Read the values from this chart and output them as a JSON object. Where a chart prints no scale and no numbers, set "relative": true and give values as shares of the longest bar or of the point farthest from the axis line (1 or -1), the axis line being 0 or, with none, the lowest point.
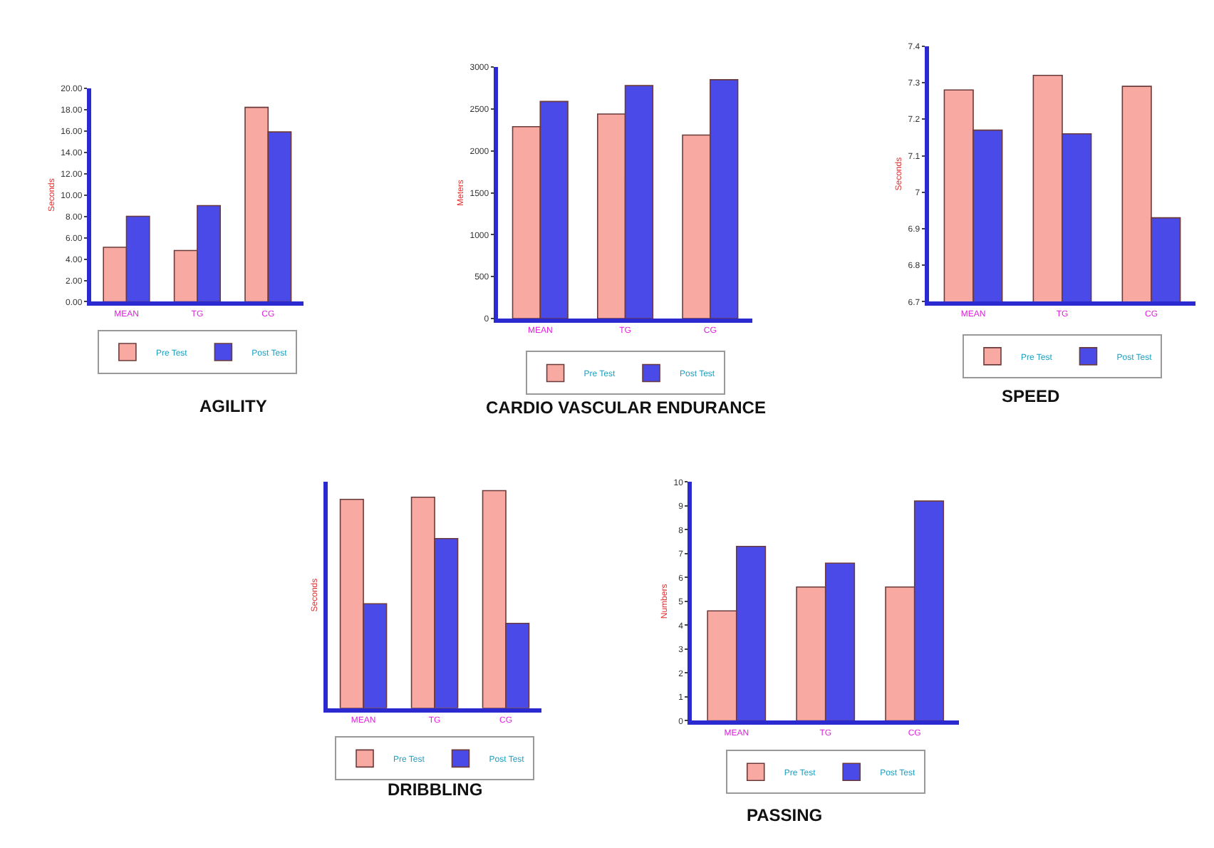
{
  "chart_data": [
    {
      "type": "bar",
      "title": "AGILITY",
      "ylabel": "Seconds",
      "categories": [
        "MEAN",
        "TG",
        "CG"
      ],
      "legend": "bottom",
      "ylim": [
        0,
        20
      ],
      "yticks": [
        {
          "value": 0,
          "label": "0.00"
        },
        {
          "value": 2,
          "label": "2.00"
        },
        {
          "value": 4,
          "label": "4.00"
        },
        {
          "value": 6,
          "label": "6.00"
        },
        {
          "value": 8,
          "label": "8.00"
        },
        {
          "value": 10,
          "label": "10.00"
        },
        {
          "value": 12,
          "label": "12.00"
        },
        {
          "value": 14,
          "label": "14.00"
        },
        {
          "value": 16,
          "label": "16.00"
        },
        {
          "value": 18,
          "label": "18.00"
        },
        {
          "value": 20,
          "label": "20.00"
        }
      ],
      "series": [
        {
          "name": "Pre Test",
          "color": "#f7a9a2",
          "values": [
            5.1,
            4.8,
            18.2
          ]
        },
        {
          "name": "Post Test",
          "color": "#4a4ae8",
          "values": [
            8.0,
            9.0,
            15.9
          ]
        }
      ]
    },
    {
      "type": "bar",
      "title": "CARDIO VASCULAR ENDURANCE",
      "ylabel": "Meters",
      "categories": [
        "MEAN",
        "TG",
        "CG"
      ],
      "legend": "bottom",
      "ylim": [
        0,
        3000
      ],
      "yticks": [
        0,
        500,
        1000,
        1500,
        2000,
        2500,
        3000
      ],
      "series": [
        {
          "name": "Pre Test",
          "color": "#f7a9a2",
          "values": [
            2290,
            2440,
            2190
          ]
        },
        {
          "name": "Post Test",
          "color": "#4a4ae8",
          "values": [
            2590,
            2780,
            2850
          ]
        }
      ]
    },
    {
      "type": "bar",
      "title": "SPEED",
      "ylabel": "Seconds",
      "categories": [
        "MEAN",
        "TG",
        "CG"
      ],
      "legend": "bottom",
      "ylim": [
        6.7,
        7.4
      ],
      "yticks": [
        6.7,
        6.8,
        6.9,
        7,
        7.1,
        7.2,
        7.3,
        7.4
      ],
      "series": [
        {
          "name": "Pre Test",
          "color": "#f7a9a2",
          "values": [
            7.28,
            7.32,
            7.29
          ]
        },
        {
          "name": "Post Test",
          "color": "#4a4ae8",
          "values": [
            7.17,
            7.16,
            6.93
          ]
        }
      ]
    },
    {
      "type": "bar",
      "title": "DRIBBLING",
      "ylabel": "Seconds",
      "categories": [
        "MEAN",
        "TG",
        "CG"
      ],
      "legend": "bottom",
      "relative": true,
      "series": [
        {
          "name": "Pre Test",
          "color": "#f7a9a2",
          "values": [
            0.96,
            0.97,
            1
          ]
        },
        {
          "name": "Post Test",
          "color": "#4a4ae8",
          "values": [
            0.48,
            0.78,
            0.39
          ]
        }
      ]
    },
    {
      "type": "bar",
      "title": "PASSING",
      "ylabel": "Numbers",
      "categories": [
        "MEAN",
        "TG",
        "CG"
      ],
      "legend": "bottom",
      "ylim": [
        0,
        10
      ],
      "yticks": [
        0,
        1,
        2,
        3,
        4,
        5,
        6,
        7,
        8,
        9,
        10
      ],
      "series": [
        {
          "name": "Pre Test",
          "color": "#f7a9a2",
          "values": [
            4.6,
            5.6,
            5.6
          ]
        },
        {
          "name": "Post Test",
          "color": "#4a4ae8",
          "values": [
            7.3,
            6.6,
            9.2
          ]
        }
      ]
    }
  ]
}
